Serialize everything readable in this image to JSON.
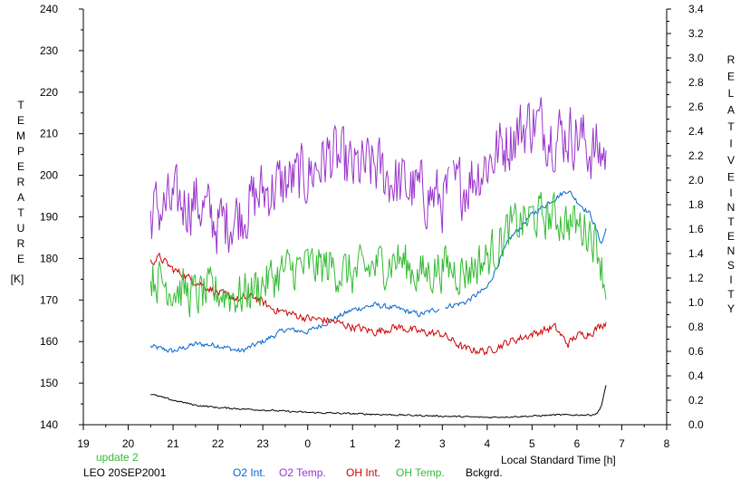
{
  "chart_data": {
    "type": "line",
    "xlabel": "Local Standard Time [h]",
    "x_ticks": [
      "19",
      "20",
      "21",
      "22",
      "23",
      "0",
      "1",
      "2",
      "3",
      "4",
      "5",
      "6",
      "7",
      "8"
    ],
    "y_left": {
      "label_letters": [
        "T",
        "E",
        "M",
        "P",
        "E",
        "R",
        "A",
        "T",
        "U",
        "R",
        "E"
      ],
      "unit": "[K]",
      "range": [
        140,
        240
      ],
      "ticks": [
        "140",
        "150",
        "160",
        "170",
        "180",
        "190",
        "200",
        "210",
        "220",
        "230",
        "240"
      ]
    },
    "y_right": {
      "label_letters_line1": [
        "R",
        "E",
        "L",
        "A",
        "T",
        "I",
        "V",
        "E"
      ],
      "label_letters_line2": [
        "I",
        "N",
        "T",
        "E",
        "N",
        "S",
        "I",
        "T",
        "Y"
      ],
      "range": [
        0.0,
        3.4
      ],
      "ticks": [
        "0.0",
        "0.2",
        "0.4",
        "0.6",
        "0.8",
        "1.0",
        "1.2",
        "1.4",
        "1.6",
        "1.8",
        "2.0",
        "2.2",
        "2.4",
        "2.6",
        "2.8",
        "3.0",
        "3.2",
        "3.4"
      ]
    },
    "update_text": "update 2",
    "station_text": "LEO 20SEP2001",
    "legend": [
      {
        "label": "O2 Int.",
        "color": "#0066cc"
      },
      {
        "label": "O2 Temp.",
        "color": "#9933cc"
      },
      {
        "label": "OH Int.",
        "color": "#cc0000"
      },
      {
        "label": "OH Temp.",
        "color": "#33bb33"
      },
      {
        "label": "Bckgrd.",
        "color": "#000000"
      }
    ],
    "series": [
      {
        "name": "O2 Int.",
        "axis": "right",
        "color": "#0066cc",
        "gaps": [
          [
            2.95,
            3.05
          ]
        ],
        "knots": [
          [
            20.5,
            0.64
          ],
          [
            21.0,
            0.6
          ],
          [
            21.5,
            0.66
          ],
          [
            22.0,
            0.65
          ],
          [
            22.5,
            0.6
          ],
          [
            23.0,
            0.68
          ],
          [
            23.5,
            0.78
          ],
          [
            24.0,
            0.76
          ],
          [
            24.5,
            0.85
          ],
          [
            25.0,
            0.94
          ],
          [
            25.5,
            0.98
          ],
          [
            26.0,
            0.95
          ],
          [
            26.5,
            0.9
          ],
          [
            27.0,
            0.96
          ],
          [
            27.5,
            1.0
          ],
          [
            28.0,
            1.12
          ],
          [
            28.5,
            1.52
          ],
          [
            29.0,
            1.72
          ],
          [
            29.5,
            1.85
          ],
          [
            29.8,
            1.92
          ],
          [
            30.0,
            1.83
          ],
          [
            30.3,
            1.72
          ],
          [
            30.55,
            1.48
          ],
          [
            30.65,
            1.6
          ]
        ],
        "noise": 0.02
      },
      {
        "name": "O2 Temp.",
        "axis": "left",
        "color": "#9933cc",
        "gaps": [
          [
            3.15,
            3.22
          ]
        ],
        "knots": [
          [
            20.5,
            191
          ],
          [
            21.0,
            193
          ],
          [
            21.5,
            194
          ],
          [
            22.0,
            188
          ],
          [
            22.5,
            191
          ],
          [
            23.0,
            196
          ],
          [
            23.5,
            198
          ],
          [
            24.0,
            200
          ],
          [
            24.5,
            205
          ],
          [
            25.0,
            201
          ],
          [
            25.5,
            202
          ],
          [
            26.0,
            198
          ],
          [
            26.5,
            196
          ],
          [
            27.0,
            194
          ],
          [
            27.5,
            198
          ],
          [
            28.0,
            203
          ],
          [
            28.5,
            209
          ],
          [
            29.0,
            213
          ],
          [
            29.5,
            210
          ],
          [
            30.0,
            210
          ],
          [
            30.3,
            206
          ],
          [
            30.65,
            205
          ]
        ],
        "noise": 7
      },
      {
        "name": "OH Int.",
        "axis": "right",
        "color": "#cc0000",
        "gaps": [],
        "knots": [
          [
            20.5,
            1.33
          ],
          [
            20.7,
            1.37
          ],
          [
            21.0,
            1.27
          ],
          [
            21.5,
            1.17
          ],
          [
            22.0,
            1.08
          ],
          [
            22.5,
            1.02
          ],
          [
            22.8,
            1.05
          ],
          [
            23.2,
            0.95
          ],
          [
            23.5,
            0.92
          ],
          [
            24.0,
            0.87
          ],
          [
            24.5,
            0.85
          ],
          [
            25.0,
            0.8
          ],
          [
            25.5,
            0.76
          ],
          [
            26.0,
            0.8
          ],
          [
            26.5,
            0.76
          ],
          [
            27.0,
            0.74
          ],
          [
            27.5,
            0.62
          ],
          [
            28.0,
            0.6
          ],
          [
            28.5,
            0.68
          ],
          [
            29.0,
            0.74
          ],
          [
            29.5,
            0.8
          ],
          [
            29.8,
            0.66
          ],
          [
            30.0,
            0.73
          ],
          [
            30.3,
            0.75
          ],
          [
            30.65,
            0.84
          ]
        ],
        "noise": 0.03
      },
      {
        "name": "OH Temp.",
        "axis": "left",
        "color": "#33bb33",
        "gaps": [],
        "knots": [
          [
            20.5,
            176
          ],
          [
            21.0,
            173
          ],
          [
            21.5,
            171
          ],
          [
            22.0,
            172
          ],
          [
            22.5,
            171
          ],
          [
            23.0,
            174
          ],
          [
            23.5,
            177
          ],
          [
            24.0,
            178
          ],
          [
            24.5,
            178
          ],
          [
            25.0,
            176
          ],
          [
            25.5,
            178
          ],
          [
            26.0,
            180
          ],
          [
            26.5,
            176
          ],
          [
            27.0,
            178
          ],
          [
            27.5,
            177
          ],
          [
            28.0,
            180
          ],
          [
            28.5,
            187
          ],
          [
            29.0,
            190
          ],
          [
            29.5,
            190
          ],
          [
            30.0,
            188
          ],
          [
            30.3,
            187
          ],
          [
            30.5,
            182
          ],
          [
            30.65,
            172
          ]
        ],
        "noise": 5
      },
      {
        "name": "Bckgrd.",
        "axis": "right",
        "color": "#000000",
        "gaps": [],
        "knots": [
          [
            20.5,
            0.25
          ],
          [
            21.0,
            0.2
          ],
          [
            21.5,
            0.16
          ],
          [
            22.0,
            0.14
          ],
          [
            22.5,
            0.13
          ],
          [
            23.0,
            0.12
          ],
          [
            24.0,
            0.1
          ],
          [
            25.0,
            0.09
          ],
          [
            26.0,
            0.08
          ],
          [
            27.0,
            0.07
          ],
          [
            28.0,
            0.06
          ],
          [
            29.0,
            0.07
          ],
          [
            29.5,
            0.08
          ],
          [
            30.0,
            0.08
          ],
          [
            30.3,
            0.08
          ],
          [
            30.45,
            0.09
          ],
          [
            30.55,
            0.16
          ],
          [
            30.65,
            0.32
          ]
        ],
        "noise": 0.006
      }
    ]
  }
}
